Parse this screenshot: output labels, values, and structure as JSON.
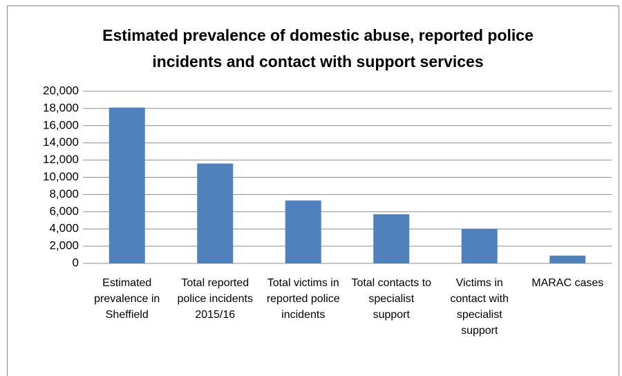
{
  "chart_data": {
    "type": "bar",
    "title": "Estimated prevalence of domestic abuse, reported police incidents and contact with support services",
    "categories": [
      "Estimated prevalence in Sheffield",
      "Total reported police incidents 2015/16",
      "Total victims in reported police incidents",
      "Total contacts to specialist support",
      "Victims in contact with specialist support",
      "MARAC cases"
    ],
    "values": [
      18100,
      11600,
      7300,
      5700,
      4000,
      900
    ],
    "color": "#4f81bd",
    "ylim": [
      0,
      20000
    ],
    "yticks": [
      0,
      {
        "value": 2000,
        "label": "2,000"
      },
      {
        "value": 4000,
        "label": "4,000"
      },
      {
        "value": 6000,
        "label": "6,000"
      },
      {
        "value": 8000,
        "label": "8,000"
      },
      {
        "value": 10000,
        "label": "10,000"
      },
      {
        "value": 12000,
        "label": "12,000"
      },
      {
        "value": 14000,
        "label": "14,000"
      },
      {
        "value": 16000,
        "label": "16,000"
      },
      {
        "value": 18000,
        "label": "18,000"
      },
      {
        "value": 20000,
        "label": "20,000"
      }
    ],
    "grid": true
  }
}
